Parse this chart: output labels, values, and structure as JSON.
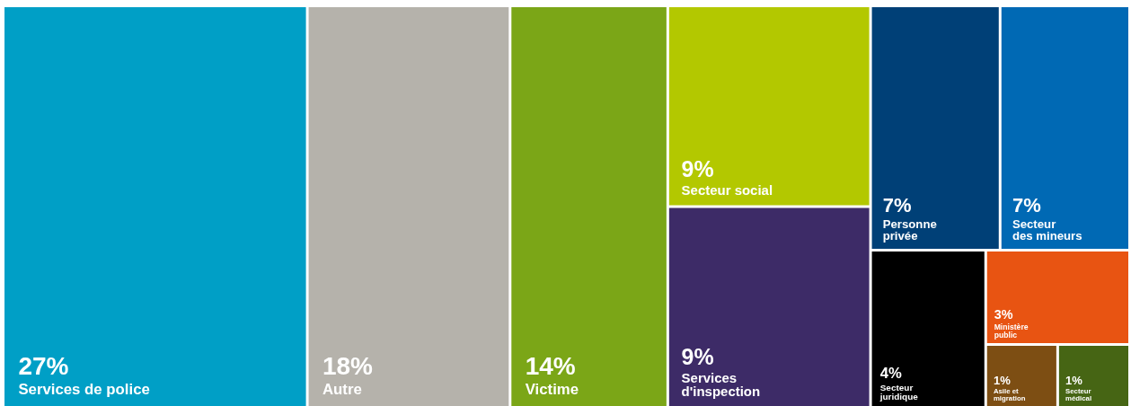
{
  "chart_data": {
    "type": "other",
    "categories": [
      "Services de police",
      "Autre",
      "Victime",
      "Secteur social",
      "Services\nd'inspection",
      "Personne\nprivée",
      "Secteur\ndes mineurs",
      "Secteur\njuridique",
      "Ministère\npublic",
      "Asile et\nmigration",
      "Secteur\nmédical"
    ],
    "values": [
      27,
      18,
      14,
      9,
      9,
      7,
      7,
      4,
      3,
      1,
      1
    ],
    "value_labels": [
      "27%",
      "18%",
      "14%",
      "9%",
      "9%",
      "7%",
      "7%",
      "4%",
      "3%",
      "1%",
      "1%"
    ],
    "colors": [
      "#009fc6",
      "#b5b2ab",
      "#7ba617",
      "#b3c800",
      "#3d2b67",
      "#004077",
      "#0069b4",
      "#000000",
      "#e85412",
      "#7d4e13",
      "#466514"
    ]
  }
}
